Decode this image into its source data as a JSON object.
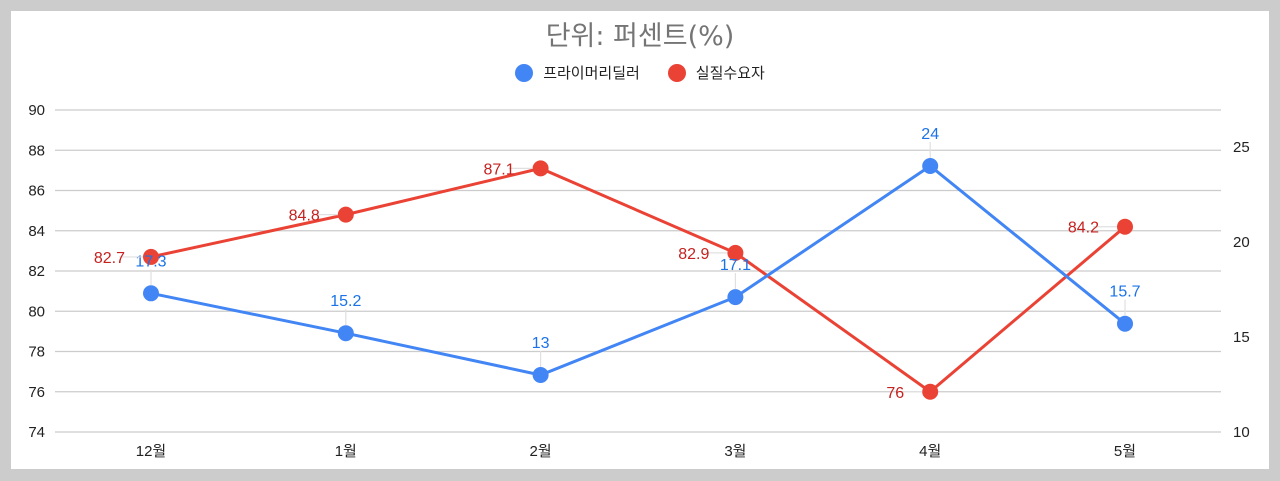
{
  "title": "단위: 퍼센트(%)",
  "legend": [
    {
      "label": "프라이머리딜러",
      "color": "#4285f4"
    },
    {
      "label": "실질수요자",
      "color": "#ea4335"
    }
  ],
  "chart_data": {
    "type": "line",
    "title": "단위: 퍼센트(%)",
    "categories": [
      "12월",
      "1월",
      "2월",
      "3월",
      "4월",
      "5월"
    ],
    "series": [
      {
        "name": "프라이머리딜러",
        "axis": "right",
        "color": "#4285f4",
        "values": [
          17.3,
          15.2,
          13,
          17.1,
          24,
          15.7
        ]
      },
      {
        "name": "실질수요자",
        "axis": "left",
        "color": "#ea4335",
        "values": [
          82.7,
          84.8,
          87.1,
          82.9,
          76,
          84.2
        ]
      }
    ],
    "left_axis": {
      "ticks": [
        74,
        76,
        78,
        80,
        82,
        84,
        86,
        88,
        90
      ],
      "ylim": [
        74,
        90
      ]
    },
    "right_axis": {
      "ticks": [
        10,
        15,
        20,
        25
      ],
      "ylim": [
        10,
        27
      ]
    },
    "xlabel": "",
    "ylabel": "",
    "grid": true,
    "legend_position": "top",
    "data_labels": true
  }
}
